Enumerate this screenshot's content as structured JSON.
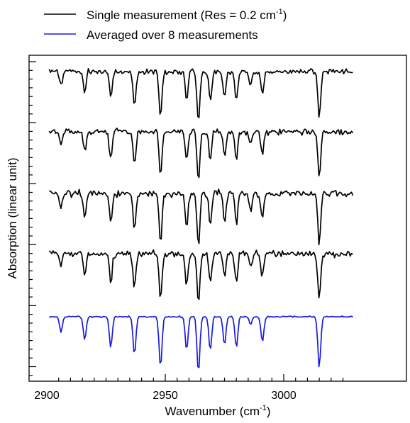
{
  "chart_data": {
    "type": "line",
    "title": "",
    "xlabel": {
      "text": "Wavenumber (cm",
      "sup": "-1",
      "suffix": ")"
    },
    "ylabel": "Absorption (linear unit)",
    "xlim": [
      2900,
      3030
    ],
    "xticks": [
      {
        "value": 2900,
        "label": "2900"
      },
      {
        "value": 2950,
        "label": "2950"
      },
      {
        "value": 3000,
        "label": "3000"
      }
    ],
    "y_tick_labels_shown": false,
    "grid": false,
    "legend": {
      "position": "top-left (above plot)",
      "entries": [
        {
          "text": "Single measurement (Res  = 0.2 cm",
          "sup": "-1",
          "suffix": ")",
          "color": "#000000"
        },
        {
          "text": "Averaged over 8 measurements",
          "sup": "",
          "suffix": "",
          "color": "#1a1adf"
        }
      ]
    },
    "series": [
      {
        "color": "#000000",
        "traces": 4,
        "x": [
          2906,
          2916,
          2927,
          2937,
          2948,
          2959,
          2964,
          2969,
          2975,
          2980,
          2986,
          2991,
          3015
        ],
        "absorption": [
          0.3,
          0.45,
          0.6,
          0.75,
          1.0,
          0.65,
          1.1,
          0.65,
          0.55,
          0.6,
          0.3,
          0.5,
          1.0
        ]
      },
      {
        "name": "Averaged over 8 measurements",
        "color": "#1a1adf",
        "x": [
          2906,
          2916,
          2927,
          2937,
          2948,
          2959,
          2964,
          2969,
          2975,
          2980,
          2986,
          2991,
          3015
        ],
        "absorption": [
          0.3,
          0.45,
          0.6,
          0.75,
          1.0,
          0.65,
          1.1,
          0.65,
          0.55,
          0.6,
          0.15,
          0.5,
          1.0
        ]
      }
    ],
    "colors": {
      "black": "#000000",
      "blue": "#1a1adf"
    }
  }
}
